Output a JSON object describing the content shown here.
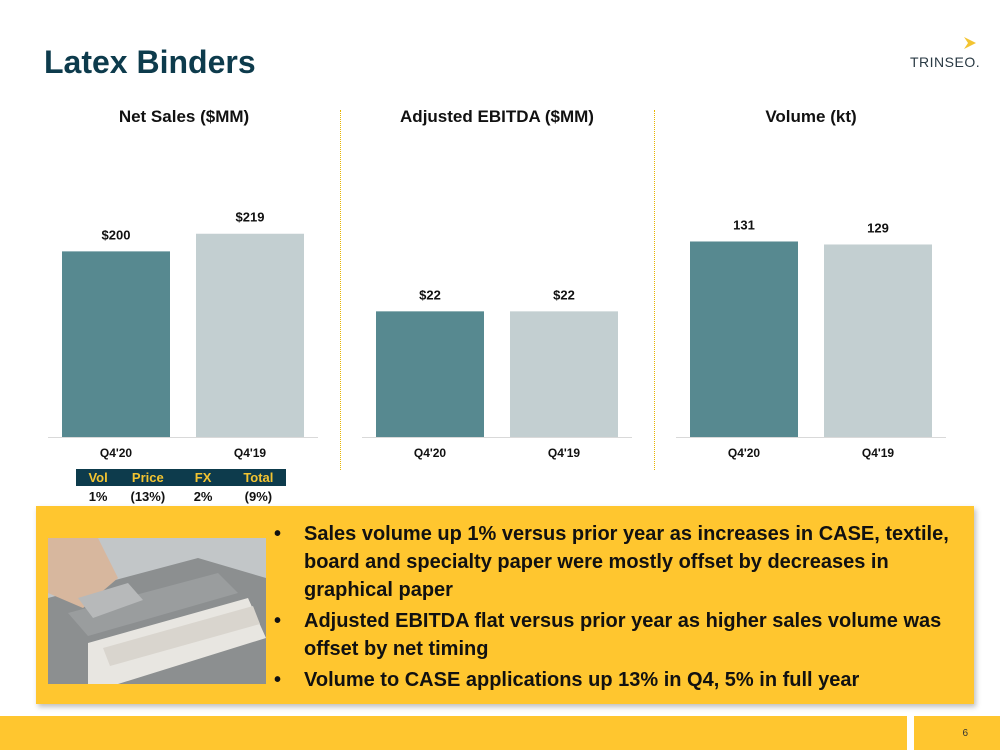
{
  "title": "Latex Binders",
  "logo": {
    "text": "TRINSEO.",
    "icon": "arrow-chevron-icon",
    "accent": "#f3c431"
  },
  "colors": {
    "current": "#578990",
    "prior": "#c3cfd1",
    "navy": "#0d3b4c",
    "accent": "#ffc62f"
  },
  "chart_data": [
    {
      "type": "bar",
      "title": "Net Sales ($MM)",
      "categories": [
        "Q4'20",
        "Q4'19"
      ],
      "values": [
        200,
        219
      ],
      "labels": [
        "$200",
        "$219"
      ],
      "ylim": [
        0,
        320
      ]
    },
    {
      "type": "bar",
      "title": "Adjusted EBITDA ($MM)",
      "categories": [
        "Q4'20",
        "Q4'19"
      ],
      "values": [
        22,
        22
      ],
      "labels": [
        "$22",
        "$22"
      ],
      "ylim": [
        0,
        52
      ]
    },
    {
      "type": "bar",
      "title": "Volume (kt)",
      "categories": [
        "Q4'20",
        "Q4'19"
      ],
      "values": [
        131,
        129
      ],
      "labels": [
        "131",
        "129"
      ],
      "ylim": [
        0,
        199
      ]
    }
  ],
  "breakdown": {
    "headers": [
      "Vol",
      "Price",
      "FX",
      "Total"
    ],
    "values": [
      "1%",
      "(13%)",
      "2%",
      "(9%)"
    ]
  },
  "bullets": [
    "Sales volume up 1% versus prior year as increases in CASE, textile, board and specialty paper were mostly offset by decreases in graphical paper",
    "Adjusted EBITDA flat versus prior year as higher sales volume was offset by net timing",
    "Volume to CASE applications up 13% in Q4, 5% in full year"
  ],
  "page_number": "6"
}
